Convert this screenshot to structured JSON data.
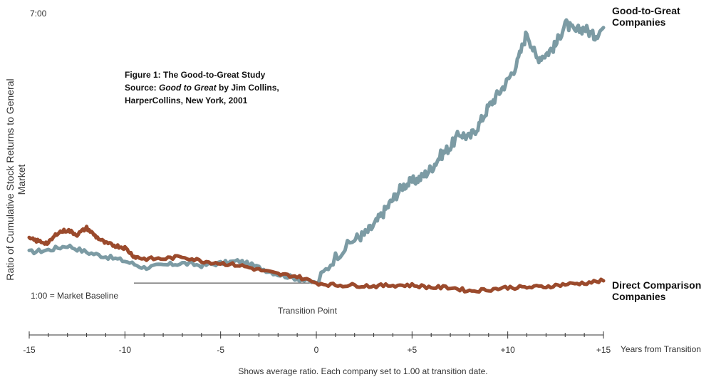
{
  "chart_data": {
    "type": "line",
    "ylabel": "Ratio of Cumulative Stock Returns to General Market",
    "y_top_label": "7:00",
    "baseline_label": "1:00 = Market Baseline",
    "transition_label": "Transition Point",
    "figure_note": {
      "line1": "Figure 1: The Good-to-Great Study",
      "line2_prefix": "Source: ",
      "line2_italic": "Good to Great",
      "line2_suffix": " by Jim Collins,",
      "line3": "HarperCollins, New York, 2001"
    },
    "x_unit_label": "Years from Transition",
    "x_ticks": [
      "-15",
      "-10",
      "-5",
      "0",
      "+5",
      "+10",
      "+15"
    ],
    "x_tick_values": [
      -15,
      -10,
      -5,
      0,
      5,
      10,
      15
    ],
    "xlim": [
      -15,
      15
    ],
    "ylim": [
      0.5,
      7.2
    ],
    "caption": "Shows average ratio. Each company set to 1.00 at transition date.",
    "series": [
      {
        "name_line1": "Good-to-Great",
        "name_line2": "Companies",
        "color": "#7c9ba4",
        "x": [
          -15,
          -14,
          -13,
          -12,
          -11,
          -10,
          -9,
          -8,
          -7,
          -6,
          -5,
          -4,
          -3,
          -2,
          -1,
          0,
          1,
          2,
          2.5,
          3,
          3.5,
          4,
          4.5,
          5,
          5.5,
          6,
          6.5,
          7,
          7.5,
          8,
          8.5,
          9,
          9.5,
          10,
          10.5,
          11,
          11.5,
          12,
          12.5,
          13,
          13.5,
          14,
          14.5,
          15
        ],
        "y": [
          1.7,
          1.75,
          1.85,
          1.7,
          1.6,
          1.5,
          1.35,
          1.4,
          1.45,
          1.4,
          1.45,
          1.5,
          1.35,
          1.2,
          1.1,
          1.0,
          1.6,
          2.0,
          2.1,
          2.3,
          2.6,
          2.9,
          3.2,
          3.3,
          3.4,
          3.6,
          3.9,
          4.1,
          4.4,
          4.3,
          4.6,
          5.0,
          5.3,
          5.6,
          6.0,
          6.7,
          6.1,
          6.2,
          6.4,
          6.9,
          6.7,
          6.8,
          6.6,
          6.8
        ]
      },
      {
        "name_line1": "Direct Comparison",
        "name_line2": "Companies",
        "color": "#9b4a2c",
        "x": [
          -15,
          -14.5,
          -14,
          -13.5,
          -13,
          -12.5,
          -12,
          -11.5,
          -11,
          -10.5,
          -10,
          -9.5,
          -9,
          -8,
          -7,
          -6,
          -5,
          -4,
          -3,
          -2,
          -1,
          0,
          1,
          2,
          3,
          4,
          5,
          6,
          7,
          8,
          9,
          10,
          11,
          12,
          13,
          14,
          15
        ],
        "y": [
          2.0,
          1.95,
          1.9,
          2.15,
          2.2,
          2.1,
          2.25,
          2.05,
          1.9,
          1.85,
          1.8,
          1.6,
          1.55,
          1.55,
          1.6,
          1.5,
          1.45,
          1.4,
          1.3,
          1.2,
          1.15,
          1.0,
          0.95,
          0.95,
          0.93,
          0.95,
          0.95,
          0.9,
          0.9,
          0.82,
          0.85,
          0.9,
          0.9,
          0.92,
          0.97,
          1.0,
          1.05
        ]
      }
    ]
  }
}
